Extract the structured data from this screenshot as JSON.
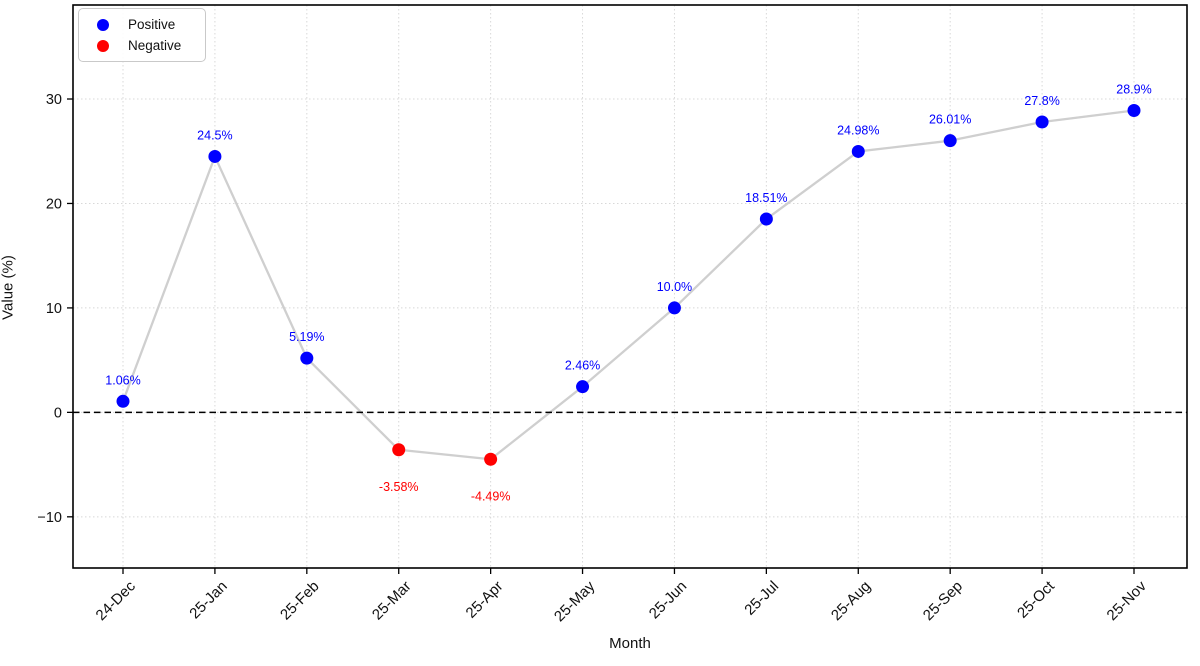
{
  "figure": {
    "xlabel": "Month",
    "ylabel": "Value (%)",
    "background_color": "#ffffff"
  },
  "legend": {
    "items": [
      {
        "label": "Positive",
        "color": "#0000ff"
      },
      {
        "label": "Negative",
        "color": "#ff0000"
      }
    ]
  },
  "chart_data": {
    "type": "line",
    "title": "",
    "xlabel": "Month",
    "ylabel": "Value (%)",
    "categories": [
      "24-Dec",
      "25-Jan",
      "25-Feb",
      "25-Mar",
      "25-Apr",
      "25-May",
      "25-Jun",
      "25-Jul",
      "25-Aug",
      "25-Sep",
      "25-Oct",
      "25-Nov"
    ],
    "values": [
      1.06,
      24.5,
      5.19,
      -3.58,
      -4.49,
      2.46,
      10.0,
      18.51,
      24.98,
      26.01,
      27.8,
      28.9
    ],
    "point_labels": [
      "1.06%",
      "24.5%",
      "5.19%",
      "-3.58%",
      "-4.49%",
      "2.46%",
      "10.0%",
      "18.51%",
      "24.98%",
      "26.01%",
      "27.8%",
      "28.9%"
    ],
    "yticks": [
      -10,
      0,
      10,
      20,
      30
    ],
    "ytick_labels": [
      "−10",
      "0",
      "10",
      "20",
      "30"
    ],
    "ylim": [
      -14.9,
      39.0
    ],
    "positive_color": "#0000ff",
    "negative_color": "#ff0000",
    "line_color": "#cfcfcf",
    "zero_line": {
      "value": 0,
      "color": "#000000",
      "style": "dashed"
    },
    "grid": {
      "style": "dotted",
      "color": "#d8d8d8",
      "visible": true
    },
    "legend_position": "upper-left"
  }
}
